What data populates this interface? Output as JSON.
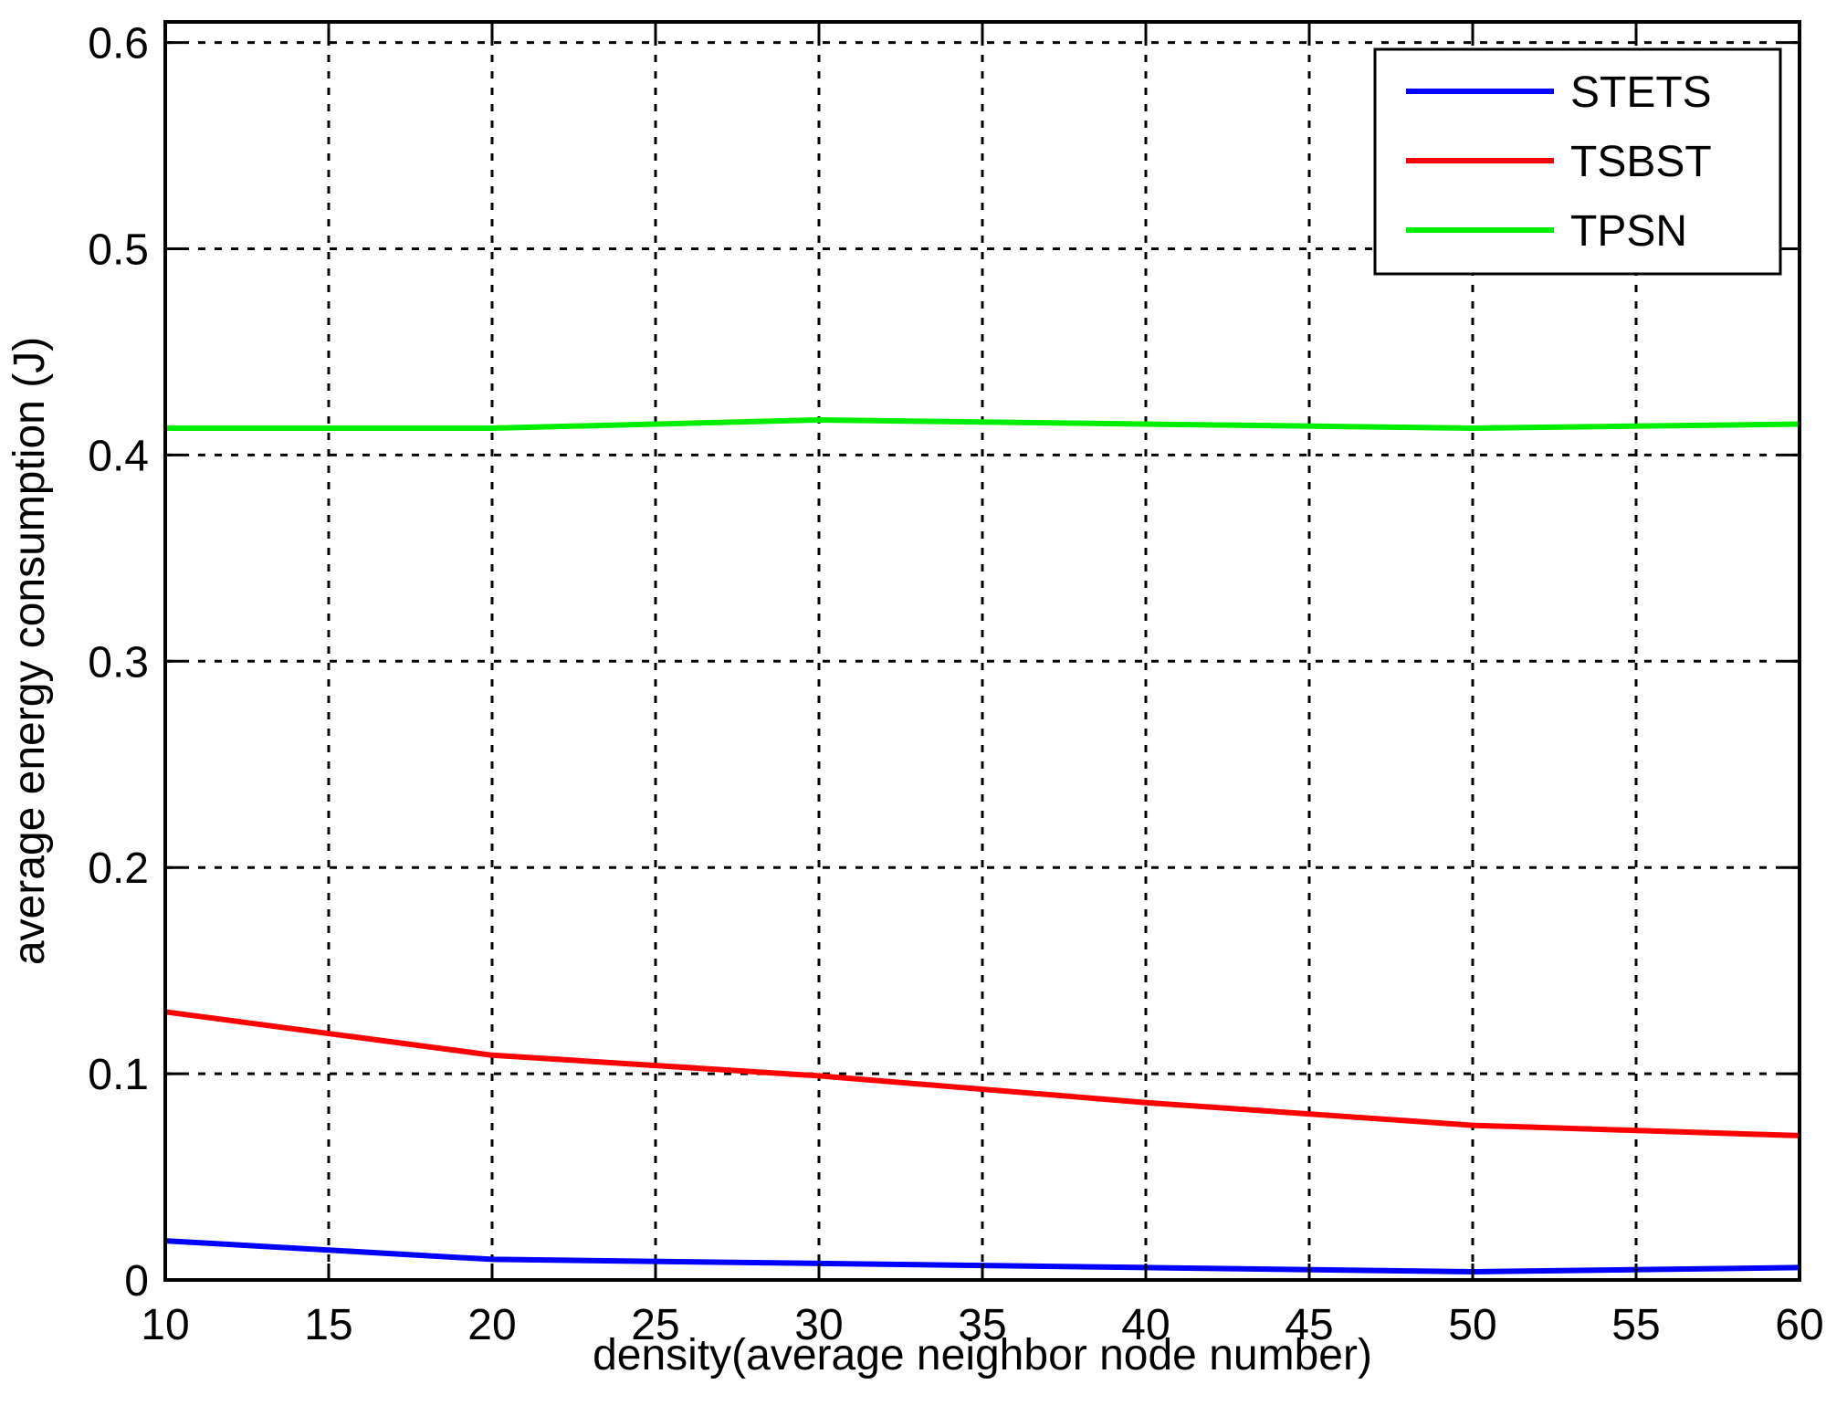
{
  "chart_data": {
    "type": "line",
    "title": "",
    "xlabel": "density(average neighbor node number)",
    "ylabel": "average energy consumption (J)",
    "xlim": [
      10,
      60
    ],
    "ylim": [
      0,
      0.61
    ],
    "xticks": [
      10,
      15,
      20,
      25,
      30,
      35,
      40,
      45,
      50,
      55,
      60
    ],
    "xtick_labels": [
      "10",
      "15",
      "20",
      "25",
      "30",
      "35",
      "40",
      "45",
      "50",
      "55",
      "60"
    ],
    "yticks": [
      0,
      0.1,
      0.2,
      0.3,
      0.4,
      0.5,
      0.6
    ],
    "ytick_labels": [
      "0",
      "0.1",
      "0.2",
      "0.3",
      "0.4",
      "0.5",
      "0.6"
    ],
    "grid": true,
    "legend_position": "top-right",
    "x": [
      10,
      20,
      30,
      40,
      50,
      60
    ],
    "series": [
      {
        "name": "STETS",
        "color": "#0000ff",
        "values": [
          0.019,
          0.01,
          0.008,
          0.006,
          0.004,
          0.006
        ]
      },
      {
        "name": "TSBST",
        "color": "#ff0000",
        "values": [
          0.13,
          0.109,
          0.099,
          0.086,
          0.075,
          0.07
        ]
      },
      {
        "name": "TPSN",
        "color": "#00ee00",
        "values": [
          0.413,
          0.413,
          0.417,
          0.415,
          0.413,
          0.415
        ]
      }
    ]
  }
}
